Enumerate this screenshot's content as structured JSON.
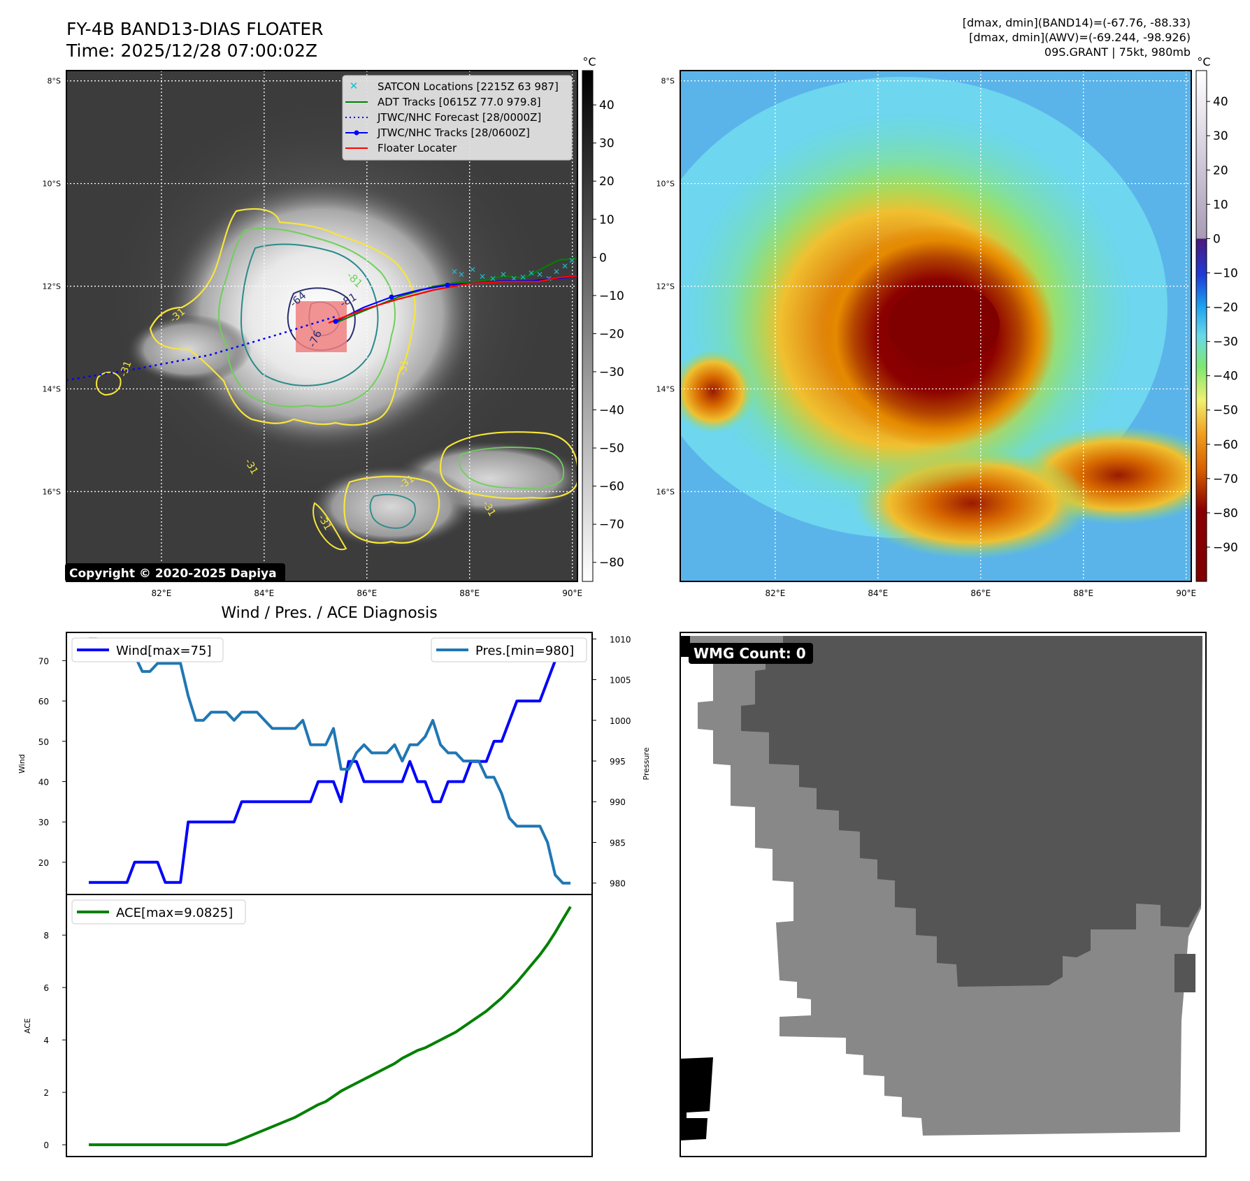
{
  "header": {
    "title_line1": "FY-4B BAND13-DIAS FLOATER",
    "title_line2": "Time: 2025/12/28 07:00:02Z",
    "stats_line1": "[dmax, dmin](BAND14)=(-67.76, -88.33)",
    "stats_line2": "[dmax, dmin](AWV)=(-69.244, -98.926)",
    "stats_line3": "09S.GRANT | 75kt, 980mb"
  },
  "copyright": "Copyright © 2020-2025 Dapiya",
  "map_axes": {
    "lat_labels": [
      "8°S",
      "10°S",
      "12°S",
      "14°S",
      "16°S"
    ],
    "lat_values": [
      -8,
      -10,
      -12,
      -14,
      -16
    ],
    "lon_labels": [
      "82°E",
      "84°E",
      "86°E",
      "88°E",
      "90°E"
    ],
    "lon_values": [
      82,
      84,
      86,
      88,
      90
    ],
    "lon_range": [
      80.15,
      90.1
    ],
    "lat_range": [
      -7.8,
      -17.75
    ]
  },
  "legend": {
    "items": [
      {
        "label": "SATCON Locations [2215Z 63 987]",
        "color": "#17becf",
        "style": "x"
      },
      {
        "label": "ADT Tracks [0615Z 77.0 979.8]",
        "color": "#008000",
        "style": "line"
      },
      {
        "label": "JTWC/NHC Forecast [28/0000Z]",
        "color": "#0000ff",
        "style": "dotted"
      },
      {
        "label": "JTWC/NHC Tracks [28/0600Z]",
        "color": "#0000ff",
        "style": "line-dot"
      },
      {
        "label": "Floater Locater",
        "color": "#ff0000",
        "style": "line"
      }
    ]
  },
  "contour_labels": [
    "-31",
    "-31",
    "-31",
    "-31",
    "-31",
    "-31",
    "-31",
    "-64",
    "-81",
    "-81",
    "-76"
  ],
  "colorbar_left": {
    "unit": "°C",
    "ticks": [
      "40",
      "30",
      "20",
      "10",
      "0",
      "−10",
      "−20",
      "−30",
      "−40",
      "−50",
      "−60",
      "−70",
      "−80"
    ],
    "tick_values": [
      40,
      30,
      20,
      10,
      0,
      -10,
      -20,
      -30,
      -40,
      -50,
      -60,
      -70,
      -80
    ],
    "range": [
      49,
      -85
    ]
  },
  "colorbar_right": {
    "unit": "°C",
    "ticks": [
      "40",
      "30",
      "20",
      "10",
      "0",
      "−10",
      "−20",
      "−30",
      "−40",
      "−50",
      "−60",
      "−70",
      "−80",
      "−90"
    ],
    "tick_values": [
      40,
      30,
      20,
      10,
      0,
      -10,
      -20,
      -30,
      -40,
      -50,
      -60,
      -70,
      -80,
      -90
    ],
    "range": [
      49,
      -100
    ]
  },
  "diagnosis_title": "Wind / Pres. / ACE Diagnosis",
  "chart_data": [
    {
      "type": "line",
      "title": "Wind / Pres. / ACE Diagnosis",
      "ylabel": "Wind",
      "ylabel_right": "Pressure",
      "ylim": [
        12,
        77
      ],
      "ylim_right": [
        978.6,
        1010.8
      ],
      "yticks": [
        20,
        30,
        40,
        50,
        60,
        70
      ],
      "yticks_right": [
        980,
        985,
        990,
        995,
        1000,
        1005,
        1010
      ],
      "series": [
        {
          "name": "Wind[max=75]",
          "color": "#0000ff",
          "axis": "left",
          "values": [
            15,
            15,
            15,
            15,
            15,
            15,
            20,
            20,
            20,
            20,
            15,
            15,
            15,
            30,
            30,
            30,
            30,
            30,
            30,
            30,
            35,
            35,
            35,
            35,
            35,
            35,
            35,
            35,
            35,
            35,
            40,
            40,
            40,
            35,
            45,
            45,
            40,
            40,
            40,
            40,
            40,
            40,
            45,
            40,
            40,
            35,
            35,
            40,
            40,
            40,
            45,
            45,
            45,
            50,
            50,
            55,
            60,
            60,
            60,
            60,
            65,
            70,
            75,
            75
          ]
        },
        {
          "name": "Pres.[min=980]",
          "color": "#1f77b4",
          "axis": "right",
          "values": [
            1010,
            1010,
            1008,
            1008,
            1008,
            1008,
            1008,
            1006,
            1006,
            1007,
            1007,
            1007,
            1007,
            1003,
            1000,
            1000,
            1001,
            1001,
            1001,
            1000,
            1001,
            1001,
            1001,
            1000,
            999,
            999,
            999,
            999,
            1000,
            997,
            997,
            997,
            999,
            994,
            994,
            996,
            997,
            996,
            996,
            996,
            997,
            995,
            997,
            997,
            998,
            1000,
            997,
            996,
            996,
            995,
            995,
            995,
            993,
            993,
            991,
            988,
            987,
            987,
            987,
            987,
            985,
            981,
            980,
            980
          ]
        }
      ]
    },
    {
      "type": "line",
      "ylabel": "ACE",
      "ylim": [
        -0.45,
        9.55
      ],
      "yticks": [
        0,
        2,
        4,
        6,
        8
      ],
      "series": [
        {
          "name": "ACE[max=9.0825]",
          "color": "#008000",
          "values": [
            0,
            0,
            0,
            0,
            0,
            0,
            0,
            0,
            0,
            0,
            0,
            0,
            0,
            0,
            0,
            0,
            0,
            0,
            0,
            0.09,
            0.21,
            0.33,
            0.45,
            0.57,
            0.69,
            0.81,
            0.93,
            1.05,
            1.21,
            1.37,
            1.53,
            1.65,
            1.85,
            2.05,
            2.2,
            2.35,
            2.5,
            2.65,
            2.8,
            2.95,
            3.1,
            3.3,
            3.45,
            3.6,
            3.7,
            3.85,
            4.0,
            4.15,
            4.3,
            4.5,
            4.7,
            4.9,
            5.1,
            5.35,
            5.6,
            5.9,
            6.2,
            6.55,
            6.9,
            7.25,
            7.65,
            8.1,
            8.6,
            9.0825
          ]
        }
      ]
    }
  ],
  "wmg": {
    "label": "WMG Count: 0"
  },
  "colors": {
    "map_dark": "#3c3c3c",
    "contour_yellow": "#f7e53a",
    "contour_green": "#6fcf5a",
    "contour_teal": "#2a8a8a",
    "contour_navy": "#2a2e6e",
    "floater_box": "#f08080",
    "wmg_dark": "#555555",
    "wmg_light": "#888888"
  }
}
